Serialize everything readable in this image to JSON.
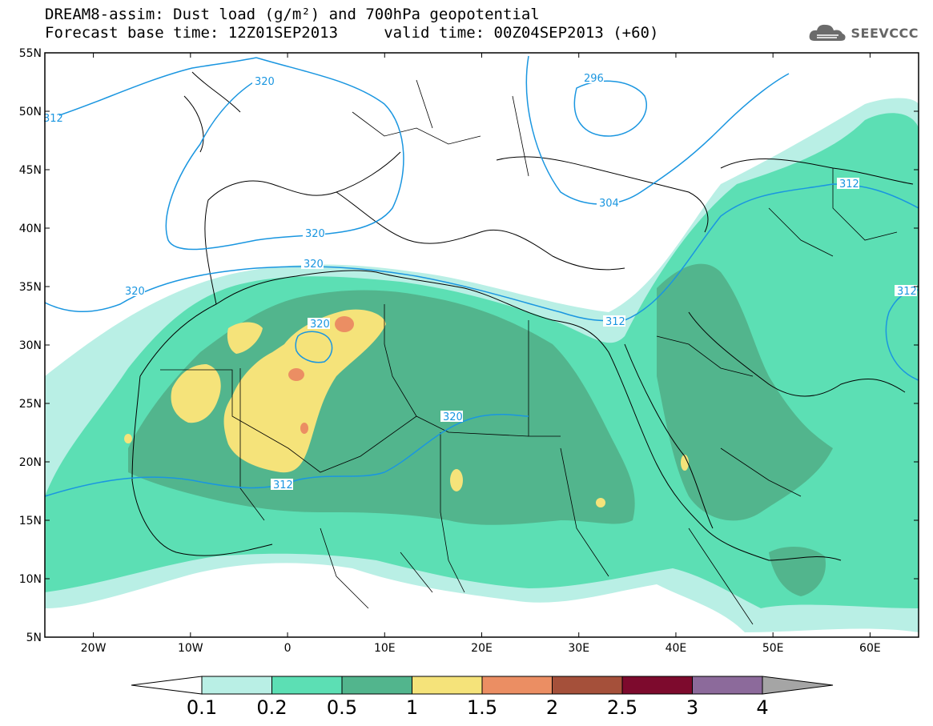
{
  "title_line1": "DREAM8-assim: Dust load (g/m²) and 700hPa geopotential",
  "title_line2": "Forecast base time: 12Z01SEP2013     valid time: 00Z04SEP2013 (+60)",
  "brand": "SEEVCCC",
  "map": {
    "lon_range": [
      -25,
      65
    ],
    "lat_range": [
      5,
      55
    ],
    "lat_ticks": [
      "55N",
      "50N",
      "45N",
      "40N",
      "35N",
      "30N",
      "25N",
      "20N",
      "15N",
      "10N",
      "5N"
    ],
    "lon_ticks": [
      "20W",
      "10W",
      "0",
      "10E",
      "20E",
      "30E",
      "40E",
      "50E",
      "60E"
    ]
  },
  "contour_labels": [
    "312",
    "320",
    "296",
    "320",
    "320",
    "320",
    "304",
    "312",
    "320",
    "312",
    "312",
    "320"
  ],
  "colorbar": {
    "labels": [
      "0.1",
      "0.2",
      "0.5",
      "1",
      "1.5",
      "2",
      "2.5",
      "3",
      "4"
    ],
    "colors": [
      "#ffffff",
      "#b9efe5",
      "#5cdfb4",
      "#52b58d",
      "#f5e37a",
      "#eb8e63",
      "#a5503a",
      "#7d0a2d",
      "#8c6a9b",
      "#a5a5a5"
    ]
  },
  "colors": {
    "c01": "#b9efe5",
    "c02": "#5cdfb4",
    "c05": "#52b58d",
    "c1": "#f5e37a",
    "c15": "#eb8e63",
    "contour": "#1a96e0"
  }
}
